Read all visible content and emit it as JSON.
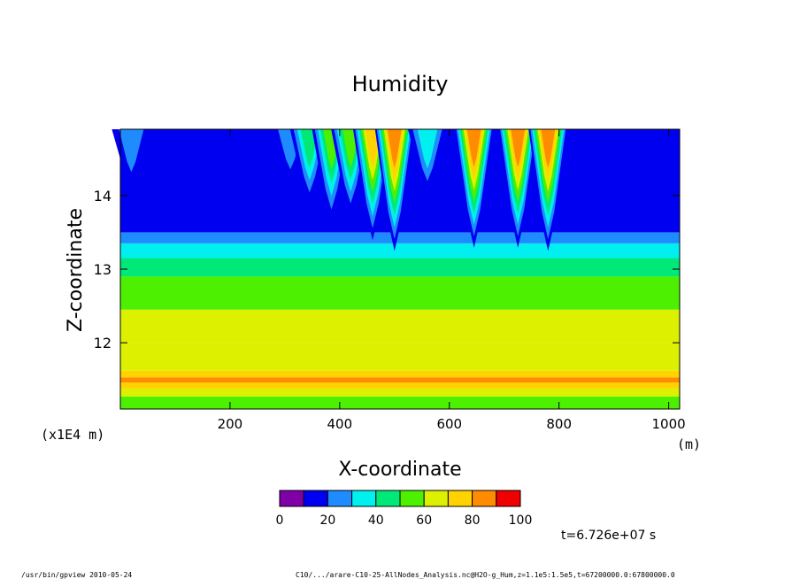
{
  "chart_data": {
    "type": "heatmap",
    "title": "Humidity",
    "xlabel": "X-coordinate",
    "ylabel": "Z-coordinate",
    "x_unit": "(m)",
    "y_unit": "(x1E4 m)",
    "xlim": [
      0,
      1020
    ],
    "ylim": [
      11.1,
      14.9
    ],
    "x_ticks": [
      200,
      400,
      600,
      800,
      1000
    ],
    "y_ticks": [
      12,
      13,
      14
    ],
    "colorbar": {
      "levels": [
        0,
        10,
        20,
        30,
        40,
        50,
        60,
        70,
        80,
        90,
        100
      ],
      "labels": [
        0,
        20,
        40,
        60,
        80,
        100
      ],
      "colors": [
        "#8000a8",
        "#0000f0",
        "#1e8cff",
        "#00f0f0",
        "#00e878",
        "#4cf000",
        "#dcf000",
        "#ffd200",
        "#ff8c00",
        "#f00000",
        "#ff9c9c"
      ]
    },
    "layers": [
      {
        "z": 11.1,
        "value": 55
      },
      {
        "z": 11.27,
        "value": 60
      },
      {
        "z": 11.38,
        "value": 75
      },
      {
        "z": 11.46,
        "value": 85
      },
      {
        "z": 11.53,
        "value": 75
      },
      {
        "z": 11.62,
        "value": 66
      },
      {
        "z": 12.0,
        "value": 62
      },
      {
        "z": 12.45,
        "value": 55
      },
      {
        "z": 12.9,
        "value": 45
      },
      {
        "z": 13.15,
        "value": 35
      },
      {
        "z": 13.35,
        "value": 25
      },
      {
        "z": 13.5,
        "value": 15
      },
      {
        "z": 14.9,
        "value": 5
      }
    ],
    "plumes": [
      {
        "x": 20,
        "value": 30
      },
      {
        "x": 310,
        "value": 25
      },
      {
        "x": 345,
        "value": 45
      },
      {
        "x": 385,
        "value": 62
      },
      {
        "x": 420,
        "value": 55
      },
      {
        "x": 460,
        "value": 78
      },
      {
        "x": 500,
        "value": 88
      },
      {
        "x": 560,
        "value": 35
      },
      {
        "x": 645,
        "value": 85
      },
      {
        "x": 725,
        "value": 85
      },
      {
        "x": 780,
        "value": 88
      }
    ]
  },
  "annotations": {
    "time": "t=6.726e+07 s",
    "footer_left": "/usr/bin/gpview  2010-05-24",
    "footer_right": "C10/.../arare-C10-25-AllNodes_Analysis.nc@H2O-g_Hum,z=1.1e5:1.5e5,t=67200000.0:67800000.0"
  }
}
